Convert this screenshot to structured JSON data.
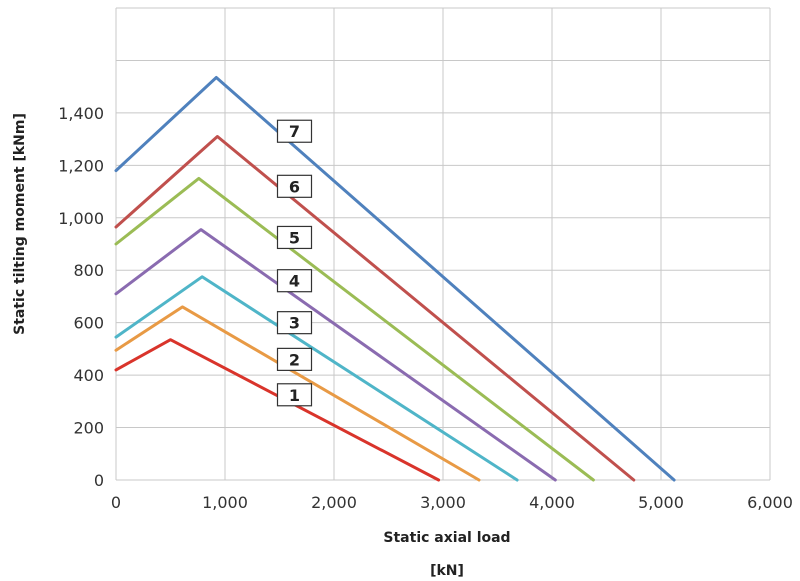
{
  "chart_data": {
    "type": "line",
    "xlabel": "Static axial load",
    "xunit": "[kN]",
    "ylabel": "Static tilting moment [kNm]",
    "xlim": [
      0,
      6000
    ],
    "ylim": [
      0,
      1800
    ],
    "x_ticks": [
      0,
      1000,
      2000,
      3000,
      4000,
      5000,
      6000
    ],
    "x_tick_labels": [
      "0",
      "1,000",
      "2,000",
      "3,000",
      "4,000",
      "5,000",
      "6,000"
    ],
    "y_ticks": [
      0,
      200,
      400,
      600,
      800,
      1000,
      1200,
      1400
    ],
    "y_tick_labels": [
      "0",
      "200",
      "400",
      "600",
      "800",
      "1,000",
      "1,200",
      "1,400"
    ],
    "grid": true,
    "series": [
      {
        "name": "1",
        "color": "#d9342b",
        "points": [
          [
            0,
            420
          ],
          [
            500,
            535
          ],
          [
            2960,
            0
          ]
        ],
        "label_at": [
          1500,
          325
        ]
      },
      {
        "name": "2",
        "color": "#e89a45",
        "points": [
          [
            0,
            495
          ],
          [
            610,
            660
          ],
          [
            3330,
            0
          ]
        ],
        "label_at": [
          1500,
          460
        ]
      },
      {
        "name": "3",
        "color": "#4fb5c8",
        "points": [
          [
            0,
            545
          ],
          [
            790,
            775
          ],
          [
            3680,
            0
          ]
        ],
        "label_at": [
          1500,
          600
        ]
      },
      {
        "name": "4",
        "color": "#8a6bb0",
        "points": [
          [
            0,
            710
          ],
          [
            780,
            955
          ],
          [
            4030,
            0
          ]
        ],
        "label_at": [
          1500,
          760
        ]
      },
      {
        "name": "5",
        "color": "#9bbc55",
        "points": [
          [
            0,
            900
          ],
          [
            760,
            1150
          ],
          [
            4380,
            0
          ]
        ],
        "label_at": [
          1500,
          925
        ]
      },
      {
        "name": "6",
        "color": "#c0504d",
        "points": [
          [
            0,
            965
          ],
          [
            930,
            1310
          ],
          [
            4750,
            0
          ]
        ],
        "label_at": [
          1500,
          1120
        ]
      },
      {
        "name": "7",
        "color": "#4f81bd",
        "points": [
          [
            0,
            1180
          ],
          [
            920,
            1535
          ],
          [
            5120,
            0
          ]
        ],
        "label_at": [
          1500,
          1330
        ]
      }
    ]
  }
}
